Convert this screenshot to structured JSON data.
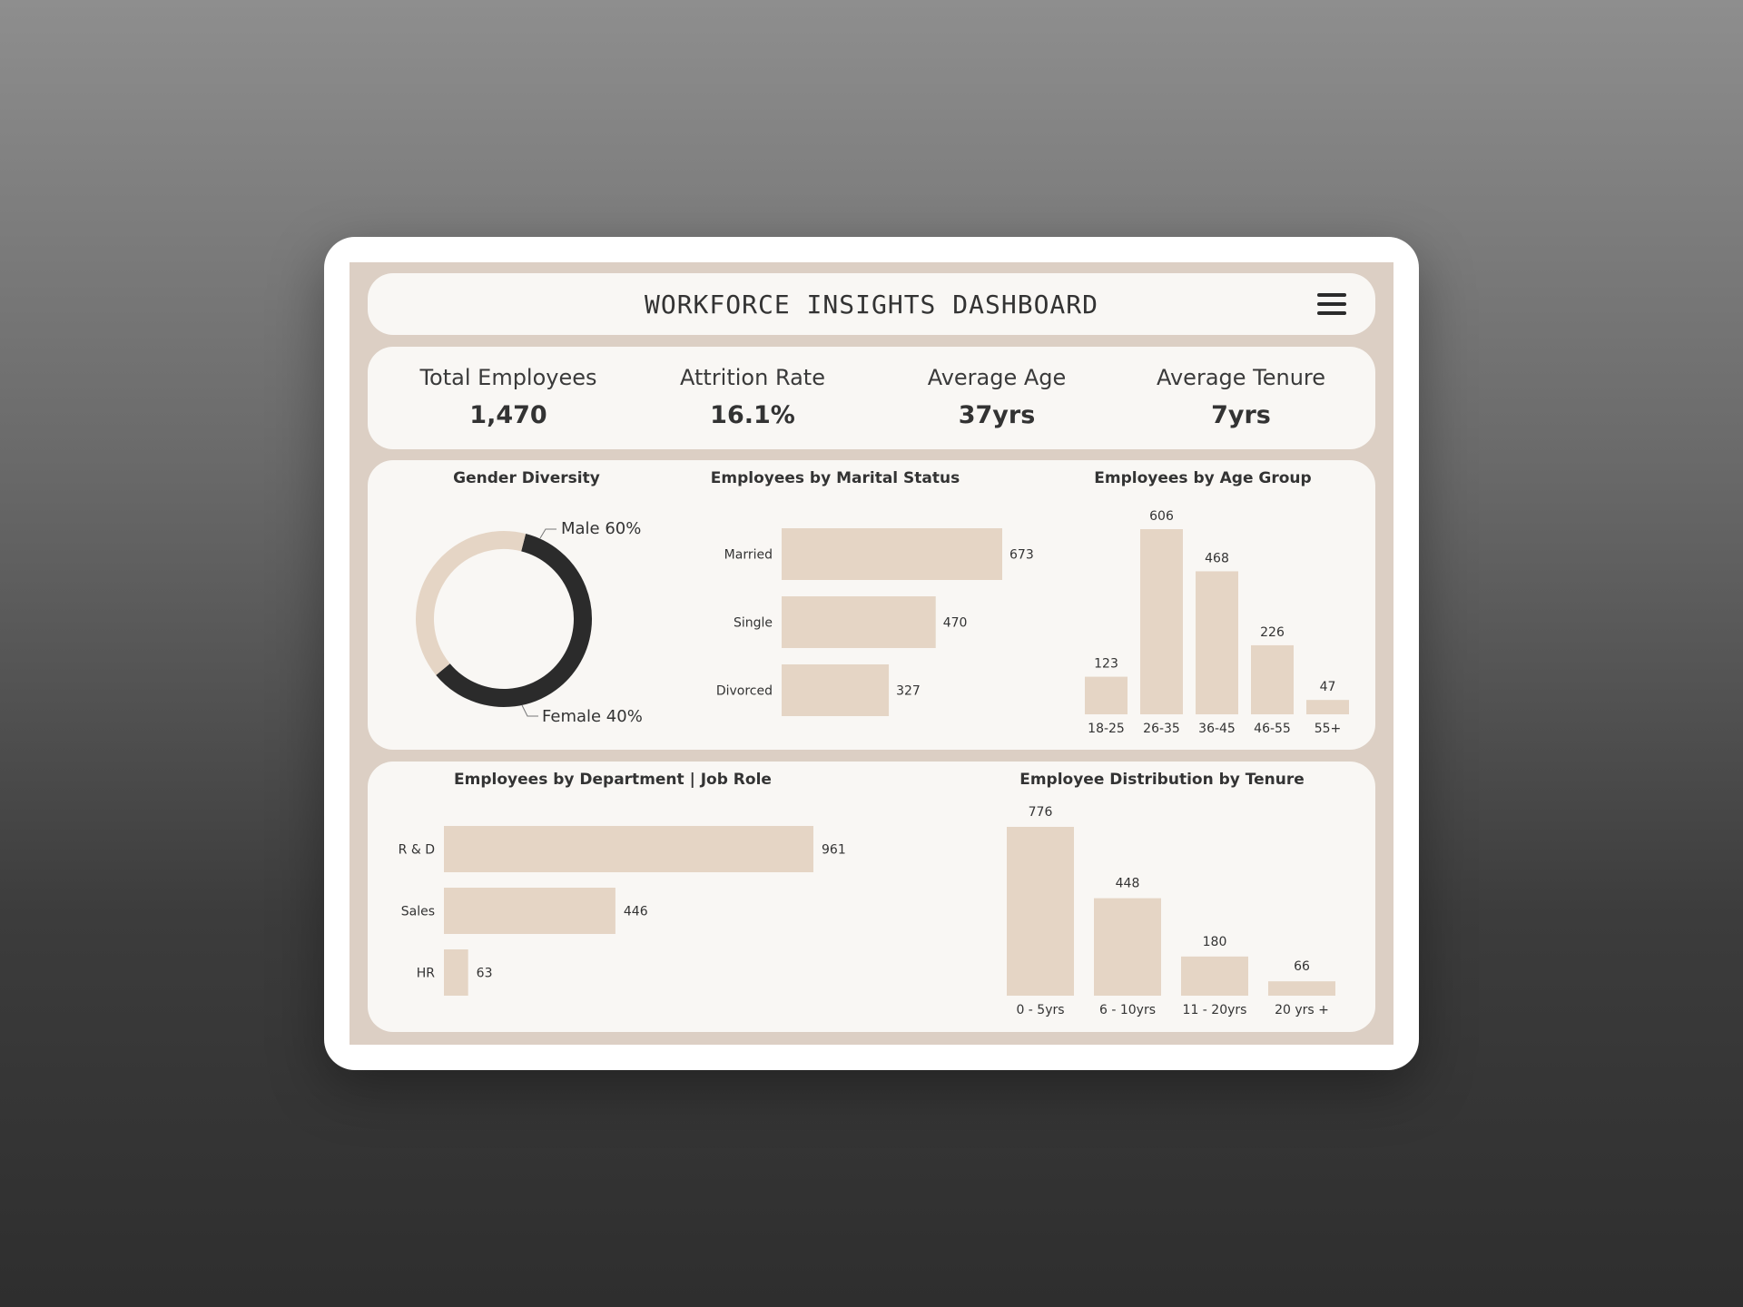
{
  "header": {
    "title": "WORKFORCE INSIGHTS DASHBOARD"
  },
  "kpis": [
    {
      "label": "Total Employees",
      "value": "1,470"
    },
    {
      "label": "Attrition Rate",
      "value": "16.1%"
    },
    {
      "label": "Average Age",
      "value": "37yrs"
    },
    {
      "label": "Average Tenure",
      "value": "7yrs"
    }
  ],
  "colors": {
    "bar": "#e5d5c5",
    "male": "#2b2b2b",
    "female": "#e5d5c5"
  },
  "chart_data": [
    {
      "type": "pie",
      "title": "Gender Diversity",
      "categories": [
        "Male",
        "Female"
      ],
      "values": [
        60,
        40
      ],
      "labels": [
        "Male 60%",
        "Female 40%"
      ]
    },
    {
      "type": "bar",
      "orientation": "horizontal",
      "title": "Employees by Marital Status",
      "categories": [
        "Married",
        "Single",
        "Divorced"
      ],
      "values": [
        673,
        470,
        327
      ]
    },
    {
      "type": "bar",
      "title": "Employees by Age Group",
      "categories": [
        "18-25",
        "26-35",
        "36-45",
        "46-55",
        "55+"
      ],
      "values": [
        123,
        606,
        468,
        226,
        47
      ]
    },
    {
      "type": "bar",
      "orientation": "horizontal",
      "title": "Employees by Department | Job Role",
      "categories": [
        "R & D",
        "Sales",
        "HR"
      ],
      "values": [
        961,
        446,
        63
      ]
    },
    {
      "type": "bar",
      "title": "Employee Distribution by Tenure",
      "categories": [
        "0 - 5yrs",
        "6 - 10yrs",
        "11 - 20yrs",
        "20 yrs +"
      ],
      "values": [
        776,
        448,
        180,
        66
      ]
    }
  ]
}
